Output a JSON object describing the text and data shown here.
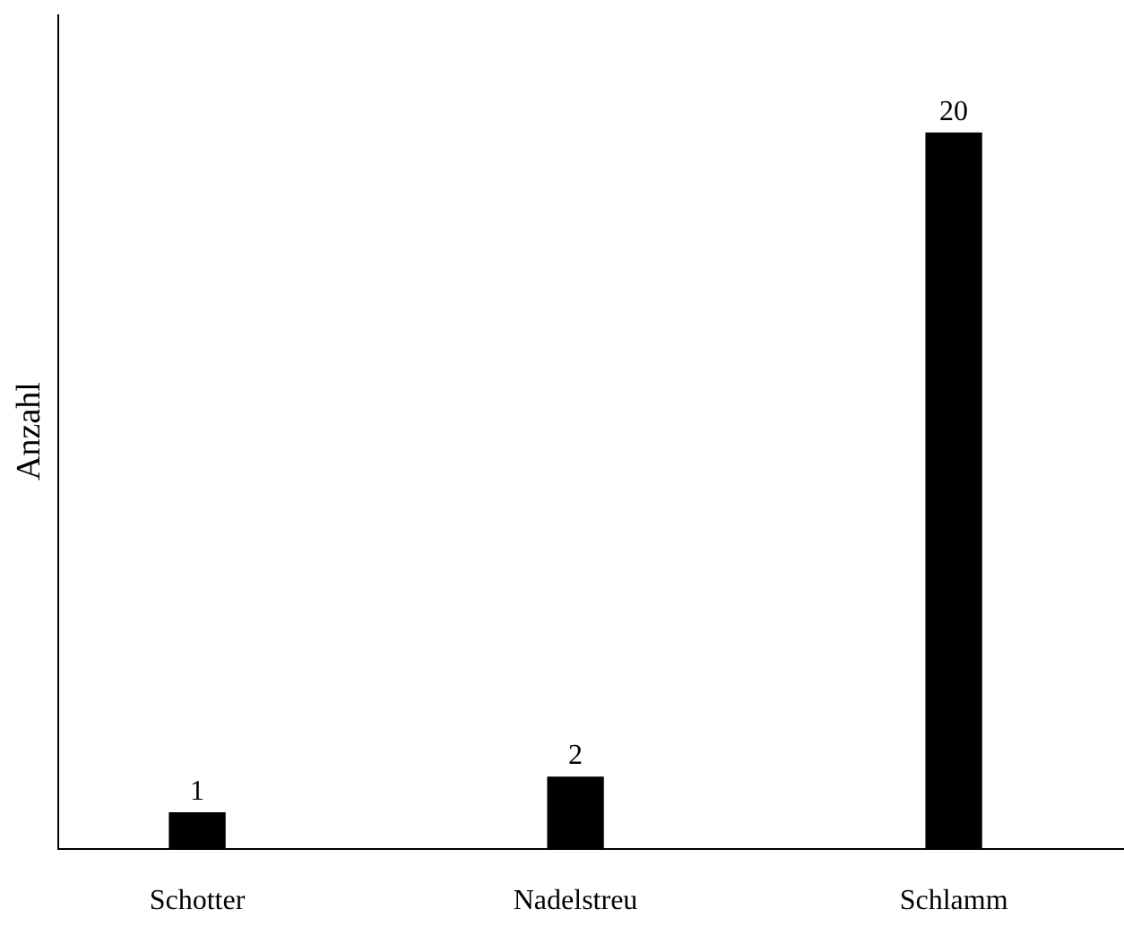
{
  "chart_data": {
    "type": "bar",
    "ylabel": "Anzahl",
    "categories": [
      "Schotter",
      "Nadelstreu",
      "Schlamm"
    ],
    "values": [
      1,
      2,
      20
    ],
    "color": "#000000",
    "data_labels": true
  }
}
